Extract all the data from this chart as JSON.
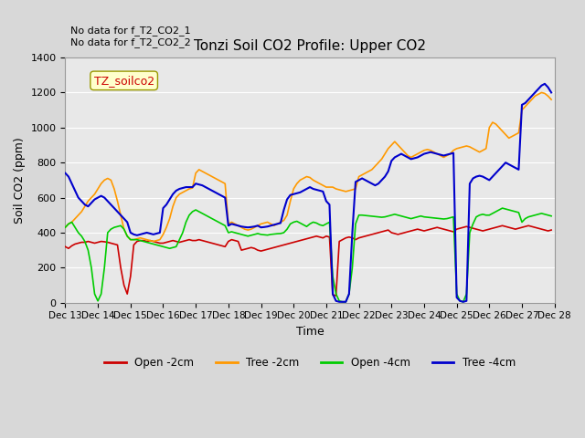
{
  "title": "Tonzi Soil CO2 Profile: Upper CO2",
  "xlabel": "Time",
  "ylabel": "Soil CO2 (ppm)",
  "ylim": [
    0,
    1400
  ],
  "xlim": [
    13,
    28
  ],
  "xtick_labels": [
    "Dec 13",
    "Dec 14",
    "Dec 15",
    "Dec 16",
    "Dec 17",
    "Dec 18",
    "Dec 19",
    "Dec 20",
    "Dec 21",
    "Dec 22",
    "Dec 23",
    "Dec 24",
    "Dec 25",
    "Dec 26",
    "Dec 27",
    "Dec 28"
  ],
  "xtick_positions": [
    13,
    14,
    15,
    16,
    17,
    18,
    19,
    20,
    21,
    22,
    23,
    24,
    25,
    26,
    27,
    28
  ],
  "ytick_positions": [
    0,
    200,
    400,
    600,
    800,
    1000,
    1200,
    1400
  ],
  "legend_entries": [
    "Open -2cm",
    "Tree -2cm",
    "Open -4cm",
    "Tree -4cm"
  ],
  "legend_colors": [
    "#cc0000",
    "#ff9900",
    "#00cc00",
    "#0000cc"
  ],
  "annotation_text": "No data for f_T2_CO2_1\nNo data for f_T2_CO2_2",
  "dataset_label": "TZ_soilco2",
  "bg_color": "#e8e8e8",
  "plot_bg_color": "#f0f0f0",
  "open_2cm": {
    "x": [
      13.0,
      13.1,
      13.2,
      13.3,
      13.4,
      13.5,
      13.6,
      13.7,
      13.8,
      13.9,
      14.0,
      14.1,
      14.2,
      14.3,
      14.4,
      14.5,
      14.6,
      14.7,
      14.8,
      14.9,
      15.0,
      15.1,
      15.2,
      15.3,
      15.4,
      15.5,
      15.6,
      15.7,
      15.8,
      15.9,
      16.0,
      16.1,
      16.2,
      16.3,
      16.4,
      16.5,
      16.6,
      16.7,
      16.8,
      16.9,
      17.0,
      17.1,
      17.2,
      17.3,
      17.4,
      17.5,
      17.6,
      17.7,
      17.8,
      17.9,
      18.0,
      18.1,
      18.2,
      18.3,
      18.4,
      18.5,
      18.6,
      18.7,
      18.8,
      18.9,
      19.0,
      19.1,
      19.2,
      19.3,
      19.4,
      19.5,
      19.6,
      19.7,
      19.8,
      19.9,
      20.0,
      20.1,
      20.2,
      20.3,
      20.4,
      20.5,
      20.6,
      20.7,
      20.8,
      20.9,
      21.0,
      21.1,
      21.2,
      21.3,
      21.4,
      21.5,
      21.6,
      21.7,
      21.8,
      21.9,
      22.0,
      22.1,
      22.2,
      22.3,
      22.4,
      22.5,
      22.6,
      22.7,
      22.8,
      22.9,
      23.0,
      23.1,
      23.2,
      23.3,
      23.4,
      23.5,
      23.6,
      23.7,
      23.8,
      23.9,
      24.0,
      24.1,
      24.2,
      24.3,
      24.4,
      24.5,
      24.6,
      24.7,
      24.8,
      24.9,
      25.0,
      25.1,
      25.2,
      25.3,
      25.4,
      25.5,
      25.6,
      25.7,
      25.8,
      25.9,
      26.0,
      26.1,
      26.2,
      26.3,
      26.4,
      26.5,
      26.6,
      26.7,
      26.8,
      26.9,
      27.0,
      27.1,
      27.2,
      27.3,
      27.4,
      27.5,
      27.6,
      27.7,
      27.8,
      27.9
    ],
    "y": [
      320,
      310,
      325,
      335,
      340,
      345,
      345,
      350,
      345,
      340,
      345,
      350,
      348,
      345,
      340,
      335,
      330,
      200,
      100,
      50,
      150,
      330,
      350,
      355,
      355,
      350,
      355,
      350,
      345,
      340,
      340,
      345,
      350,
      355,
      350,
      345,
      350,
      355,
      360,
      355,
      355,
      360,
      355,
      350,
      345,
      340,
      335,
      330,
      325,
      320,
      350,
      360,
      355,
      350,
      300,
      305,
      310,
      315,
      310,
      300,
      295,
      300,
      305,
      310,
      315,
      320,
      325,
      330,
      335,
      340,
      345,
      350,
      355,
      360,
      365,
      370,
      375,
      380,
      375,
      370,
      380,
      375,
      45,
      40,
      350,
      360,
      370,
      375,
      370,
      360,
      370,
      375,
      380,
      385,
      390,
      395,
      400,
      405,
      410,
      415,
      400,
      395,
      390,
      395,
      400,
      405,
      410,
      415,
      420,
      415,
      410,
      415,
      420,
      425,
      430,
      425,
      420,
      415,
      410,
      405,
      420,
      425,
      430,
      435,
      430,
      425,
      420,
      415,
      410,
      415,
      420,
      425,
      430,
      435,
      440,
      435,
      430,
      425,
      420,
      425,
      430,
      435,
      440,
      435,
      430,
      425,
      420,
      415,
      410,
      415
    ]
  },
  "tree_2cm": {
    "x": [
      13.0,
      13.1,
      13.2,
      13.3,
      13.4,
      13.5,
      13.6,
      13.7,
      13.8,
      13.9,
      14.0,
      14.1,
      14.2,
      14.3,
      14.4,
      14.5,
      14.6,
      14.7,
      14.8,
      14.9,
      15.0,
      15.1,
      15.2,
      15.3,
      15.4,
      15.5,
      15.6,
      15.7,
      15.8,
      15.9,
      16.0,
      16.1,
      16.2,
      16.3,
      16.4,
      16.5,
      16.6,
      16.7,
      16.8,
      16.9,
      17.0,
      17.1,
      17.2,
      17.3,
      17.4,
      17.5,
      17.6,
      17.7,
      17.8,
      17.9,
      18.0,
      18.1,
      18.2,
      18.3,
      18.4,
      18.5,
      18.6,
      18.7,
      18.8,
      18.9,
      19.0,
      19.1,
      19.2,
      19.3,
      19.4,
      19.5,
      19.6,
      19.7,
      19.8,
      19.9,
      20.0,
      20.1,
      20.2,
      20.3,
      20.4,
      20.5,
      20.6,
      20.7,
      20.8,
      20.9,
      21.0,
      21.1,
      21.2,
      21.3,
      21.4,
      21.5,
      21.6,
      21.7,
      21.8,
      21.9,
      22.0,
      22.1,
      22.2,
      22.3,
      22.4,
      22.5,
      22.6,
      22.7,
      22.8,
      22.9,
      23.0,
      23.1,
      23.2,
      23.3,
      23.4,
      23.5,
      23.6,
      23.7,
      23.8,
      23.9,
      24.0,
      24.1,
      24.2,
      24.3,
      24.4,
      24.5,
      24.6,
      24.7,
      24.8,
      24.9,
      25.0,
      25.1,
      25.2,
      25.3,
      25.4,
      25.5,
      25.6,
      25.7,
      25.8,
      25.9,
      26.0,
      26.1,
      26.2,
      26.3,
      26.4,
      26.5,
      26.6,
      26.7,
      26.8,
      26.9,
      27.0,
      27.1,
      27.2,
      27.3,
      27.4,
      27.5,
      27.6,
      27.7,
      27.8,
      27.9
    ],
    "y": [
      430,
      450,
      460,
      480,
      500,
      520,
      550,
      580,
      600,
      620,
      650,
      680,
      700,
      710,
      700,
      650,
      580,
      500,
      420,
      380,
      360,
      360,
      365,
      370,
      365,
      360,
      355,
      350,
      355,
      360,
      390,
      430,
      480,
      550,
      600,
      620,
      630,
      640,
      650,
      655,
      740,
      760,
      750,
      740,
      730,
      720,
      710,
      700,
      690,
      680,
      450,
      460,
      450,
      440,
      430,
      420,
      415,
      420,
      430,
      440,
      450,
      455,
      460,
      450,
      440,
      450,
      460,
      470,
      500,
      580,
      650,
      680,
      700,
      710,
      720,
      715,
      700,
      690,
      680,
      670,
      660,
      660,
      660,
      650,
      645,
      640,
      635,
      640,
      645,
      650,
      720,
      730,
      740,
      750,
      760,
      780,
      800,
      820,
      850,
      880,
      900,
      920,
      900,
      880,
      860,
      840,
      830,
      840,
      850,
      860,
      870,
      875,
      870,
      860,
      850,
      840,
      830,
      840,
      850,
      870,
      880,
      885,
      890,
      895,
      890,
      880,
      870,
      860,
      870,
      880,
      1000,
      1030,
      1020,
      1000,
      980,
      960,
      940,
      950,
      960,
      970,
      1100,
      1120,
      1140,
      1160,
      1180,
      1190,
      1200,
      1195,
      1180,
      1160
    ]
  },
  "open_4cm": {
    "x": [
      13.0,
      13.1,
      13.2,
      13.3,
      13.4,
      13.5,
      13.6,
      13.7,
      13.8,
      13.9,
      14.0,
      14.1,
      14.2,
      14.3,
      14.4,
      14.5,
      14.6,
      14.7,
      14.8,
      14.9,
      15.0,
      15.1,
      15.2,
      15.3,
      15.4,
      15.5,
      15.6,
      15.7,
      15.8,
      15.9,
      16.0,
      16.1,
      16.2,
      16.3,
      16.4,
      16.5,
      16.6,
      16.7,
      16.8,
      16.9,
      17.0,
      17.1,
      17.2,
      17.3,
      17.4,
      17.5,
      17.6,
      17.7,
      17.8,
      17.9,
      18.0,
      18.1,
      18.2,
      18.3,
      18.4,
      18.5,
      18.6,
      18.7,
      18.8,
      18.9,
      19.0,
      19.1,
      19.2,
      19.3,
      19.4,
      19.5,
      19.6,
      19.7,
      19.8,
      19.9,
      20.0,
      20.1,
      20.2,
      20.3,
      20.4,
      20.5,
      20.6,
      20.7,
      20.8,
      20.9,
      21.0,
      21.1,
      21.2,
      21.3,
      21.4,
      21.5,
      21.6,
      21.7,
      21.8,
      21.9,
      22.0,
      22.1,
      22.2,
      22.3,
      22.4,
      22.5,
      22.6,
      22.7,
      22.8,
      22.9,
      23.0,
      23.1,
      23.2,
      23.3,
      23.4,
      23.5,
      23.6,
      23.7,
      23.8,
      23.9,
      24.0,
      24.1,
      24.2,
      24.3,
      24.4,
      24.5,
      24.6,
      24.7,
      24.8,
      24.9,
      25.0,
      25.1,
      25.2,
      25.3,
      25.4,
      25.5,
      25.6,
      25.7,
      25.8,
      25.9,
      26.0,
      26.1,
      26.2,
      26.3,
      26.4,
      26.5,
      26.6,
      26.7,
      26.8,
      26.9,
      27.0,
      27.1,
      27.2,
      27.3,
      27.4,
      27.5,
      27.6,
      27.7,
      27.8,
      27.9
    ],
    "y": [
      430,
      450,
      460,
      430,
      400,
      380,
      350,
      300,
      200,
      50,
      10,
      50,
      200,
      400,
      420,
      430,
      435,
      440,
      420,
      380,
      360,
      360,
      360,
      355,
      350,
      345,
      340,
      335,
      330,
      325,
      320,
      315,
      310,
      315,
      320,
      360,
      400,
      460,
      500,
      520,
      530,
      520,
      510,
      500,
      490,
      480,
      470,
      460,
      450,
      440,
      400,
      405,
      400,
      395,
      390,
      385,
      380,
      385,
      390,
      395,
      390,
      388,
      386,
      390,
      392,
      394,
      395,
      400,
      420,
      450,
      460,
      465,
      455,
      445,
      435,
      450,
      460,
      455,
      445,
      440,
      450,
      460,
      150,
      50,
      10,
      5,
      5,
      50,
      200,
      450,
      500,
      500,
      498,
      496,
      494,
      492,
      490,
      488,
      490,
      495,
      500,
      505,
      500,
      495,
      490,
      485,
      480,
      485,
      490,
      495,
      490,
      488,
      486,
      484,
      482,
      480,
      478,
      480,
      485,
      490,
      50,
      10,
      5,
      50,
      400,
      450,
      490,
      500,
      505,
      500,
      500,
      510,
      520,
      530,
      540,
      535,
      530,
      525,
      520,
      515,
      460,
      480,
      490,
      495,
      500,
      505,
      510,
      505,
      500,
      495
    ]
  },
  "tree_4cm": {
    "x": [
      13.0,
      13.1,
      13.2,
      13.3,
      13.4,
      13.5,
      13.6,
      13.7,
      13.8,
      13.9,
      14.0,
      14.1,
      14.2,
      14.3,
      14.4,
      14.5,
      14.6,
      14.7,
      14.8,
      14.9,
      15.0,
      15.1,
      15.2,
      15.3,
      15.4,
      15.5,
      15.6,
      15.7,
      15.8,
      15.9,
      16.0,
      16.1,
      16.2,
      16.3,
      16.4,
      16.5,
      16.6,
      16.7,
      16.8,
      16.9,
      17.0,
      17.1,
      17.2,
      17.3,
      17.4,
      17.5,
      17.6,
      17.7,
      17.8,
      17.9,
      18.0,
      18.1,
      18.2,
      18.3,
      18.4,
      18.5,
      18.6,
      18.7,
      18.8,
      18.9,
      19.0,
      19.1,
      19.2,
      19.3,
      19.4,
      19.5,
      19.6,
      19.7,
      19.8,
      19.9,
      20.0,
      20.1,
      20.2,
      20.3,
      20.4,
      20.5,
      20.6,
      20.7,
      20.8,
      20.9,
      21.0,
      21.1,
      21.2,
      21.3,
      21.4,
      21.5,
      21.6,
      21.7,
      21.8,
      21.9,
      22.0,
      22.1,
      22.2,
      22.3,
      22.4,
      22.5,
      22.6,
      22.7,
      22.8,
      22.9,
      23.0,
      23.1,
      23.2,
      23.3,
      23.4,
      23.5,
      23.6,
      23.7,
      23.8,
      23.9,
      24.0,
      24.1,
      24.2,
      24.3,
      24.4,
      24.5,
      24.6,
      24.7,
      24.8,
      24.9,
      25.0,
      25.1,
      25.2,
      25.3,
      25.4,
      25.5,
      25.6,
      25.7,
      25.8,
      25.9,
      26.0,
      26.1,
      26.2,
      26.3,
      26.4,
      26.5,
      26.6,
      26.7,
      26.8,
      26.9,
      27.0,
      27.1,
      27.2,
      27.3,
      27.4,
      27.5,
      27.6,
      27.7,
      27.8,
      27.9
    ],
    "y": [
      740,
      720,
      680,
      640,
      600,
      580,
      560,
      550,
      570,
      590,
      600,
      610,
      600,
      580,
      560,
      540,
      520,
      500,
      480,
      460,
      400,
      390,
      385,
      390,
      395,
      400,
      395,
      390,
      395,
      400,
      540,
      560,
      590,
      620,
      640,
      650,
      655,
      660,
      660,
      660,
      680,
      675,
      670,
      660,
      650,
      640,
      630,
      620,
      610,
      600,
      440,
      450,
      445,
      440,
      435,
      432,
      430,
      432,
      435,
      440,
      430,
      432,
      435,
      440,
      445,
      450,
      455,
      530,
      590,
      615,
      620,
      625,
      630,
      640,
      650,
      660,
      650,
      645,
      640,
      635,
      580,
      560,
      50,
      10,
      5,
      5,
      5,
      50,
      400,
      690,
      700,
      710,
      700,
      690,
      680,
      670,
      680,
      700,
      720,
      750,
      810,
      830,
      840,
      850,
      840,
      830,
      820,
      825,
      830,
      840,
      850,
      855,
      860,
      855,
      850,
      845,
      840,
      845,
      850,
      855,
      30,
      10,
      5,
      10,
      680,
      710,
      720,
      725,
      720,
      710,
      700,
      720,
      740,
      760,
      780,
      800,
      790,
      780,
      770,
      760,
      1130,
      1140,
      1160,
      1180,
      1200,
      1220,
      1240,
      1250,
      1230,
      1200
    ]
  }
}
